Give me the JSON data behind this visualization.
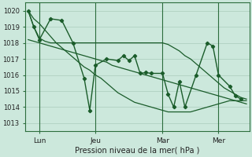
{
  "background_color": "#cce8dc",
  "grid_color": "#aaccbb",
  "line_color": "#1a5c2a",
  "title": "Pression niveau de la mer( hPa )",
  "ylim": [
    1012.5,
    1020.5
  ],
  "yticks": [
    1013,
    1014,
    1015,
    1016,
    1017,
    1018,
    1019,
    1020
  ],
  "xtick_labels": [
    "Lun",
    "Jeu",
    "Mar",
    "Mer"
  ],
  "xtick_positions": [
    2,
    12,
    24,
    34
  ],
  "vline_positions": [
    2,
    12,
    24,
    34
  ],
  "series": [
    [
      1020.0,
      1019.0,
      1018.3,
      1018.1,
      1018.0,
      1018.0,
      1018.0,
      1018.0,
      1018.0,
      1018.0,
      1018.0,
      1018.0,
      1018.0,
      1018.0,
      1018.0,
      1018.0,
      1018.0,
      1018.0,
      1018.0,
      1018.0,
      1018.0,
      1018.0,
      1018.0,
      1018.0,
      1018.0,
      1017.9,
      1017.7,
      1017.5,
      1017.2,
      1017.0,
      1016.7,
      1016.4,
      1016.1,
      1015.8,
      1015.5,
      1015.2,
      1015.0,
      1014.8,
      1014.6,
      1014.5
    ],
    [
      1020.0,
      1019.5,
      1019.2,
      1018.8,
      1018.4,
      1018.0,
      1017.7,
      1017.4,
      1017.1,
      1016.8,
      1016.5,
      1016.3,
      1016.0,
      1015.8,
      1015.5,
      1015.2,
      1014.9,
      1014.7,
      1014.5,
      1014.3,
      1014.2,
      1014.1,
      1014.0,
      1013.9,
      1013.8,
      1013.7,
      1013.7,
      1013.7,
      1013.7,
      1013.7,
      1013.8,
      1013.9,
      1014.0,
      1014.1,
      1014.2,
      1014.3,
      1014.4,
      1014.4,
      1014.4,
      1014.4
    ],
    [
      1018.2,
      1018.1,
      1018.0,
      1017.9,
      1017.8,
      1017.7,
      1017.6,
      1017.5,
      1017.4,
      1017.3,
      1017.2,
      1017.1,
      1017.0,
      1016.9,
      1016.8,
      1016.6,
      1016.5,
      1016.4,
      1016.3,
      1016.2,
      1016.1,
      1016.0,
      1015.9,
      1015.8,
      1015.7,
      1015.6,
      1015.5,
      1015.4,
      1015.3,
      1015.2,
      1015.1,
      1015.0,
      1014.9,
      1014.8,
      1014.7,
      1014.6,
      1014.5,
      1014.4,
      1014.3,
      1014.2
    ]
  ],
  "jagged_x": [
    0,
    1,
    2,
    4,
    6,
    8,
    10,
    11,
    12,
    14,
    16,
    17,
    18,
    19,
    20,
    21,
    22,
    24,
    25,
    26,
    27,
    28,
    30,
    32,
    33,
    34,
    36,
    37,
    38
  ],
  "jagged_y": [
    1020.0,
    1019.0,
    1018.2,
    1019.5,
    1019.4,
    1018.0,
    1015.8,
    1013.8,
    1016.6,
    1017.0,
    1016.9,
    1017.2,
    1016.9,
    1017.2,
    1016.1,
    1016.15,
    1016.1,
    1016.1,
    1014.8,
    1014.0,
    1015.6,
    1014.0,
    1016.0,
    1018.0,
    1017.8,
    1016.0,
    1015.3,
    1014.7,
    1014.5
  ]
}
